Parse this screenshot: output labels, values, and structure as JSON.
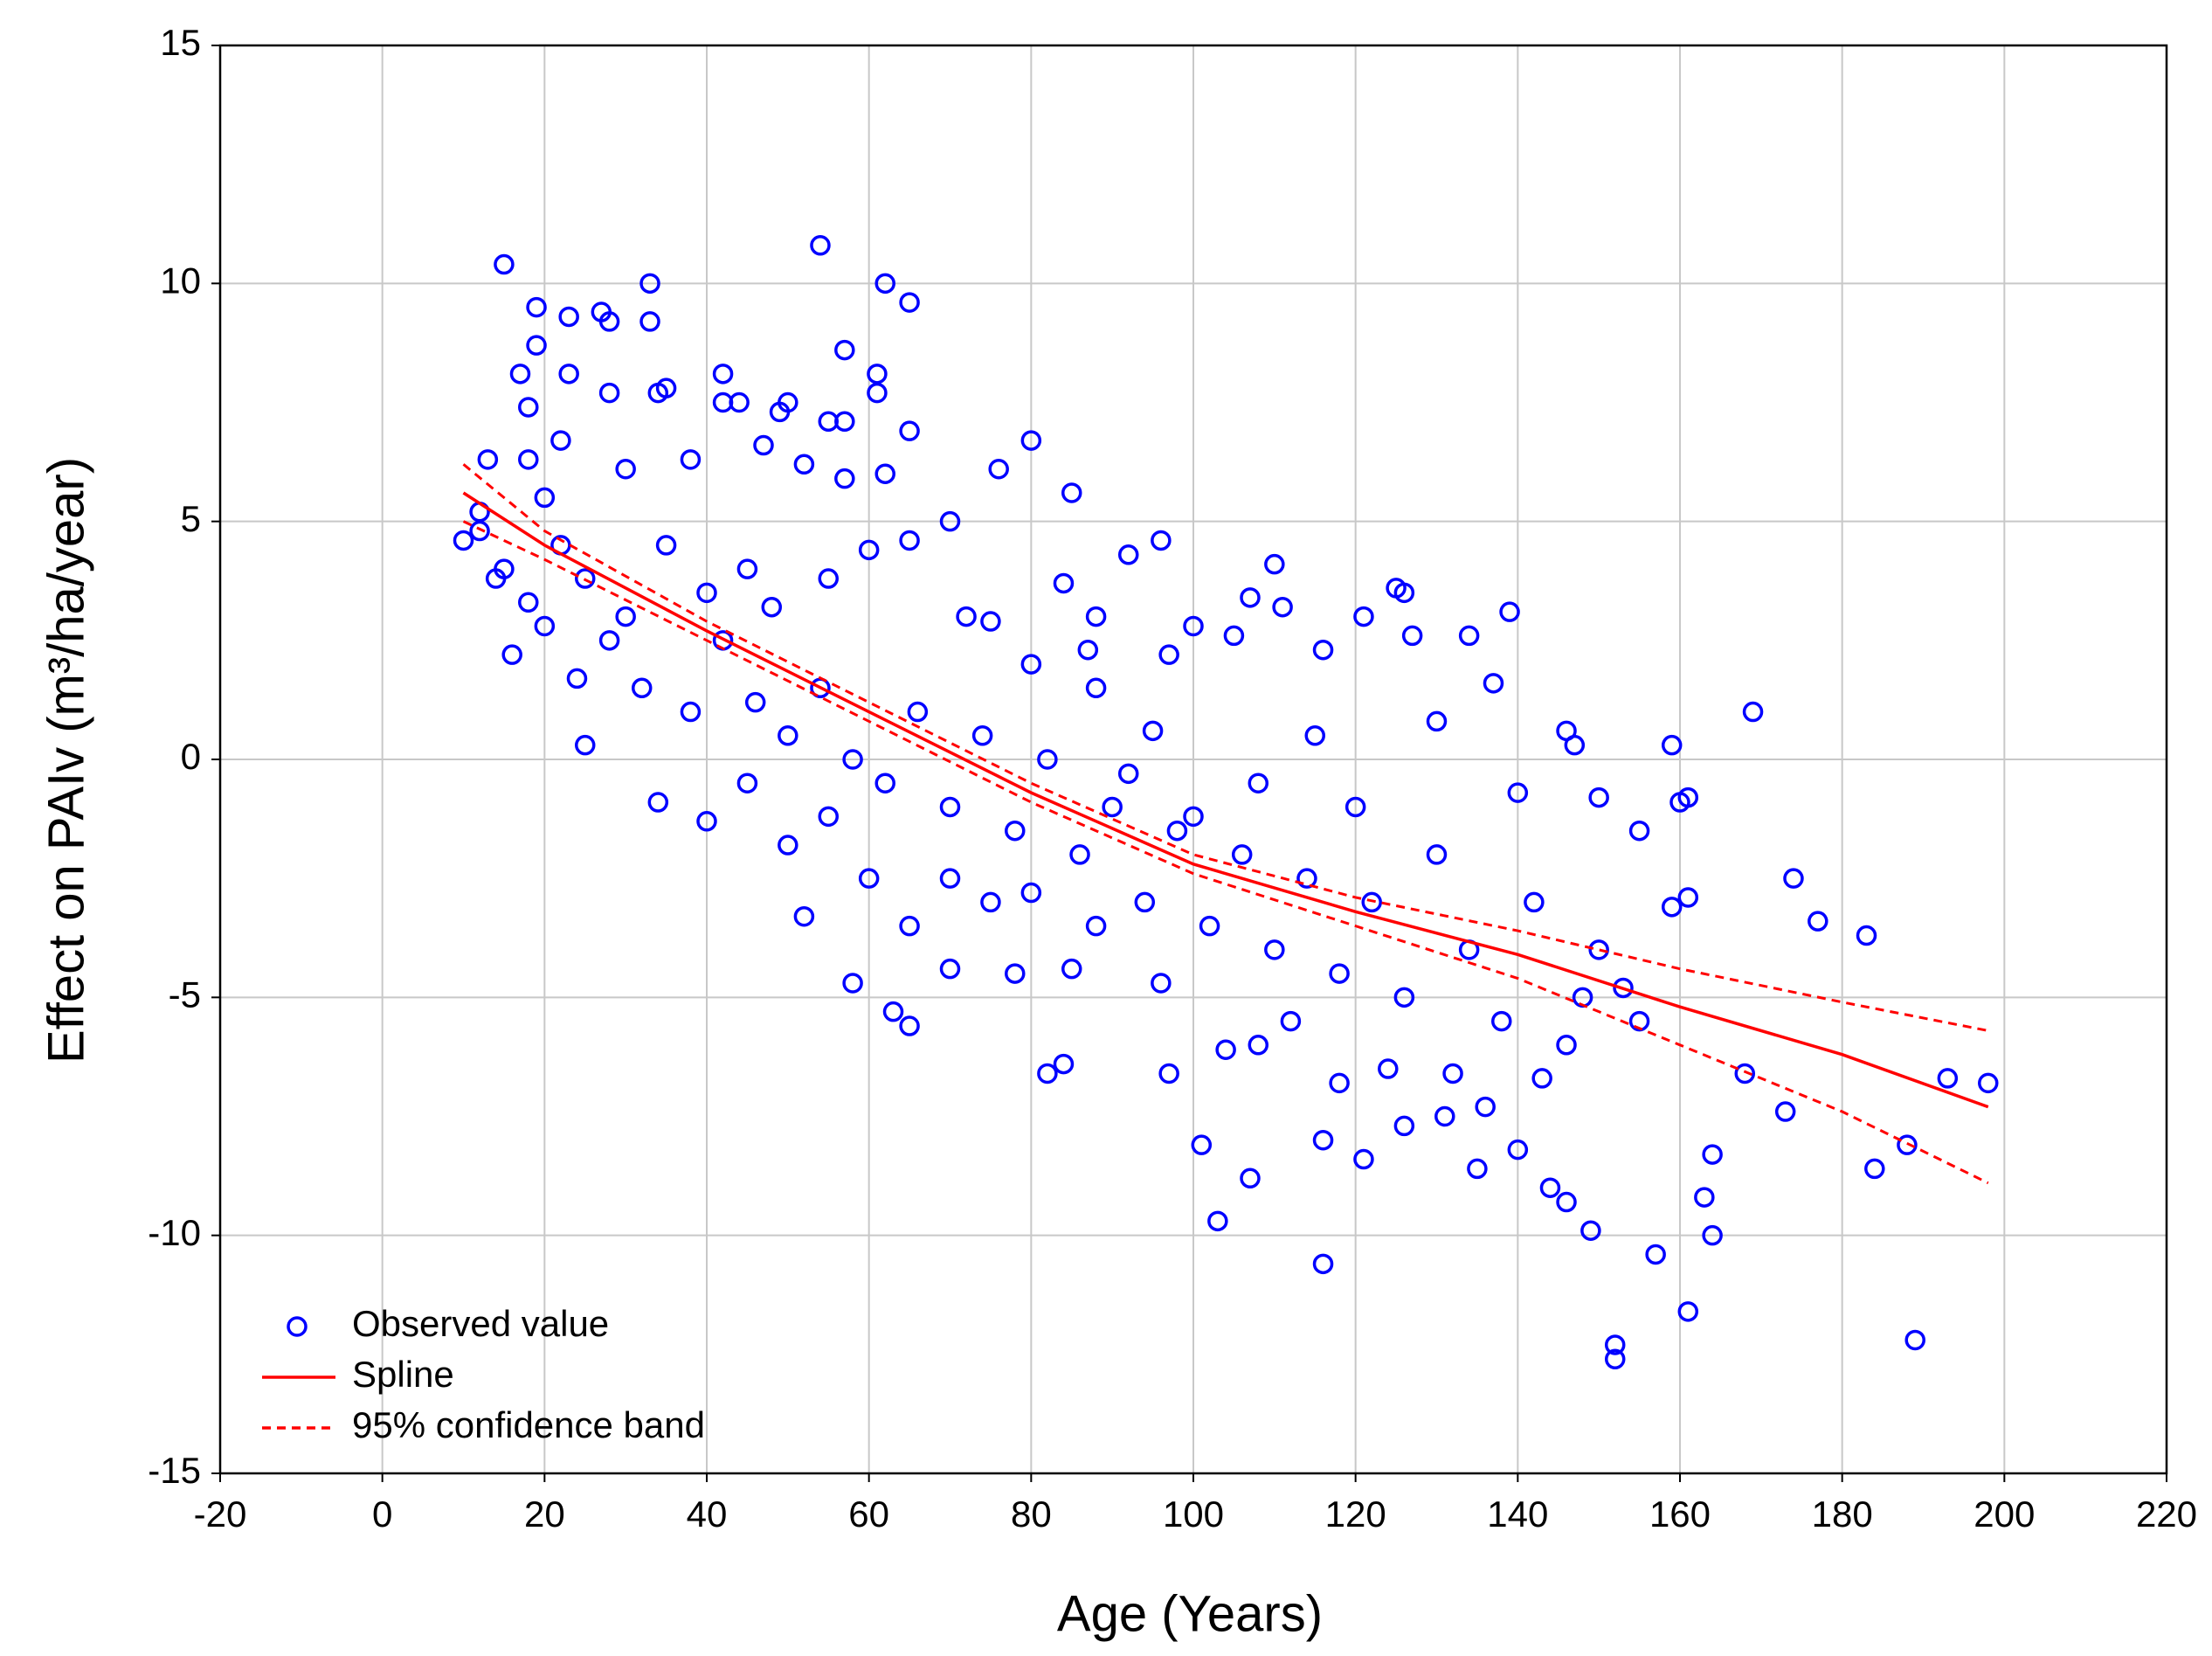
{
  "chart_data": {
    "type": "scatter",
    "xlabel": "Age (Years)",
    "ylabel": "Effect on PAIv (m³/ha/year)",
    "xlim": [
      -20,
      220
    ],
    "xticks": [
      -20,
      0,
      20,
      40,
      60,
      80,
      100,
      120,
      140,
      160,
      180,
      200,
      220
    ],
    "ylim": [
      -15,
      15
    ],
    "yticks": [
      -15,
      -10,
      -5,
      0,
      5,
      10,
      15
    ],
    "grid": true,
    "legend": "lower left",
    "series": [
      {
        "name": "Observed value",
        "color": "#0000ff",
        "kind": "points",
        "x": [
          15,
          19,
          19,
          17,
          18,
          23,
          27,
          28,
          23,
          33,
          33,
          34,
          35,
          28,
          54,
          62,
          65,
          57,
          61,
          61,
          42,
          42,
          44,
          50,
          49,
          55,
          57,
          65,
          80,
          76,
          62,
          85,
          96,
          92,
          110,
          12,
          10,
          13,
          16,
          25,
          34,
          40,
          52,
          58,
          63,
          65,
          70,
          78,
          82,
          84,
          97,
          101,
          103,
          107,
          116,
          116,
          121,
          118,
          126,
          131,
          135,
          140,
          144,
          146,
          149,
          152,
          152,
          157,
          161,
          163,
          164,
          164,
          168,
          173,
          174,
          177,
          183,
          184,
          188,
          189,
          193,
          198,
          169,
          159,
          160,
          161,
          159,
          161,
          146,
          147,
          139,
          137,
          134,
          125,
          126,
          127,
          121,
          116,
          111,
          107,
          105,
          100,
          97,
          88,
          87,
          80,
          75,
          70,
          60,
          55,
          48,
          45,
          40,
          35,
          30,
          25,
          22,
          20,
          15,
          18,
          28,
          32,
          38,
          42,
          46,
          50,
          54,
          58,
          62,
          66,
          70,
          74,
          78,
          82,
          86,
          90,
          94,
          98,
          102,
          106,
          110,
          114,
          118,
          122,
          126,
          130,
          134,
          138,
          142,
          146,
          150,
          155,
          155,
          150,
          140,
          130,
          120,
          115,
          108,
          100,
          95,
          88,
          85,
          80,
          75,
          70,
          65,
          60,
          55,
          50,
          45,
          88,
          92,
          96,
          104,
          108,
          112,
          124,
          132,
          136,
          143,
          148,
          153,
          57,
          52,
          47,
          38,
          30,
          22,
          18,
          12,
          14,
          20,
          24,
          65,
          72,
          84
        ],
        "y": [
          10.4,
          9.5,
          8.7,
          8.1,
          7.4,
          9.3,
          9.4,
          9.2,
          8.1,
          10,
          9.2,
          7.7,
          7.8,
          7.7,
          10.8,
          10,
          9.6,
          8.6,
          8.1,
          7.7,
          8.1,
          7.5,
          7.5,
          7.5,
          7.3,
          7.1,
          7.1,
          6.9,
          6.7,
          6.1,
          6,
          5.6,
          4.6,
          4.3,
          4.1,
          4.8,
          4.6,
          6.3,
          2.2,
          0.3,
          -0.9,
          -1.3,
          -3.3,
          -4.7,
          -5.3,
          -5.6,
          -4.4,
          -4.5,
          -6.6,
          -6.4,
          -6.6,
          -8.1,
          -9.7,
          -8.8,
          -8,
          -10.6,
          -8.4,
          -6.8,
          -7.7,
          -7.5,
          -8.6,
          -8.2,
          -9,
          -9.3,
          -9.9,
          -12.3,
          -12.6,
          -10.4,
          -11.6,
          -9.2,
          -10,
          -8.3,
          -6.6,
          -7.4,
          -2.5,
          -3.4,
          -3.7,
          -8.6,
          -8.1,
          -12.2,
          -6.7,
          -6.8,
          1,
          0.3,
          -0.9,
          -0.8,
          -3.1,
          -2.9,
          0.6,
          0.3,
          3.1,
          1.6,
          2.6,
          3.6,
          3.5,
          2.6,
          3.0,
          2.3,
          3.2,
          3.4,
          2.6,
          2.8,
          2.2,
          3.0,
          2.3,
          2.0,
          2.9,
          5,
          4.4,
          3.8,
          3.2,
          4.0,
          3.5,
          4.5,
          3.0,
          3.8,
          4.5,
          5.5,
          4.0,
          3.3,
          2.5,
          1.5,
          1.0,
          2.5,
          1.2,
          0.5,
          1.5,
          0,
          -0.5,
          1,
          -1,
          0.5,
          -1.5,
          0,
          -2,
          -1,
          -3,
          -1.5,
          -3.5,
          -2,
          -4,
          -2.5,
          -4.5,
          -3,
          -5,
          -2,
          -4,
          -5.5,
          -3,
          -6,
          -4,
          -5.5,
          -1.5,
          -0.8,
          -0.7,
          0.8,
          -1,
          0.5,
          -0.5,
          -1.2,
          0.6,
          -3.5,
          -4.4,
          -2.8,
          -3,
          -2.5,
          -3.5,
          -2.5,
          -1.2,
          -1.8,
          -0.5,
          1.5,
          -0.3,
          -4.7,
          -6.1,
          -6,
          -5.5,
          -6.5,
          -6.6,
          -7.3,
          -6.7,
          -5,
          -4.8,
          5.9,
          6.2,
          6.6,
          6.3,
          6.1,
          6.7,
          6.3,
          5.2,
          3.8,
          2.8,
          1.7,
          4.6,
          3.0,
          3.7
        ]
      },
      {
        "name": "Spline",
        "color": "#ff0000",
        "kind": "line",
        "x": [
          10,
          20,
          40,
          60,
          80,
          100,
          120,
          140,
          160,
          180,
          198
        ],
        "y": [
          5.6,
          4.5,
          2.7,
          1.0,
          -0.7,
          -2.2,
          -3.2,
          -4.1,
          -5.2,
          -6.2,
          -7.3
        ]
      },
      {
        "name": "95% confidence band",
        "color": "#ff0000",
        "kind": "band",
        "x": [
          10,
          20,
          40,
          60,
          80,
          100,
          120,
          140,
          160,
          180,
          198
        ],
        "upper": [
          6.2,
          4.8,
          2.9,
          1.2,
          -0.5,
          -2.0,
          -2.9,
          -3.6,
          -4.4,
          -5.1,
          -5.7
        ],
        "lower": [
          5.0,
          4.2,
          2.5,
          0.8,
          -0.9,
          -2.4,
          -3.5,
          -4.6,
          -6.0,
          -7.4,
          -8.9
        ]
      }
    ]
  }
}
